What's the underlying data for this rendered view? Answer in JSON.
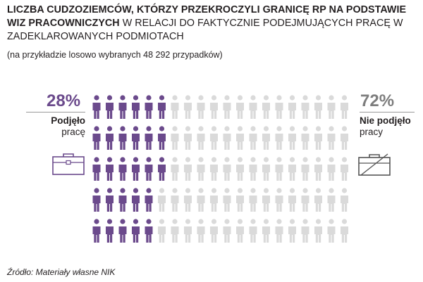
{
  "title": {
    "bold_part": "LICZBA CUDZOZIEMCÓW, KTÓRZY PRZEKROCZYLI GRANICĘ RP NA PODSTAWIE WIZ PRACOWNICZYCH",
    "light_part": " W RELACJI DO FAKTYCZNIE PODEJMUJĄCYCH PRACĘ W ZADEKLAROWANYCH PODMIOTACH"
  },
  "subtitle": "(na przykładzie losowo wybranych 48 292 przypadków)",
  "left": {
    "percent": "28%",
    "label_line1": "Podjęło",
    "label_line2": "pracę",
    "icon": "briefcase-icon"
  },
  "right": {
    "percent": "72%",
    "label_line1": "Nie podjęło",
    "label_line2": "pracy",
    "icon": "crossed-briefcase-icon"
  },
  "source": "Źródło: Materiały własne NIK",
  "colors": {
    "accent": "#6b4a8c",
    "inactive": "#dadada",
    "text": "#231f20",
    "muted": "#7d7d7d"
  },
  "chart_data": {
    "type": "pictogram",
    "rows": 5,
    "columns": 20,
    "total_icons": 100,
    "series": [
      {
        "name": "Podjęło pracę",
        "value": 28,
        "unit": "%",
        "color": "#6b4a8c"
      },
      {
        "name": "Nie podjęło pracy",
        "value": 72,
        "unit": "%",
        "color": "#dadada"
      }
    ]
  }
}
